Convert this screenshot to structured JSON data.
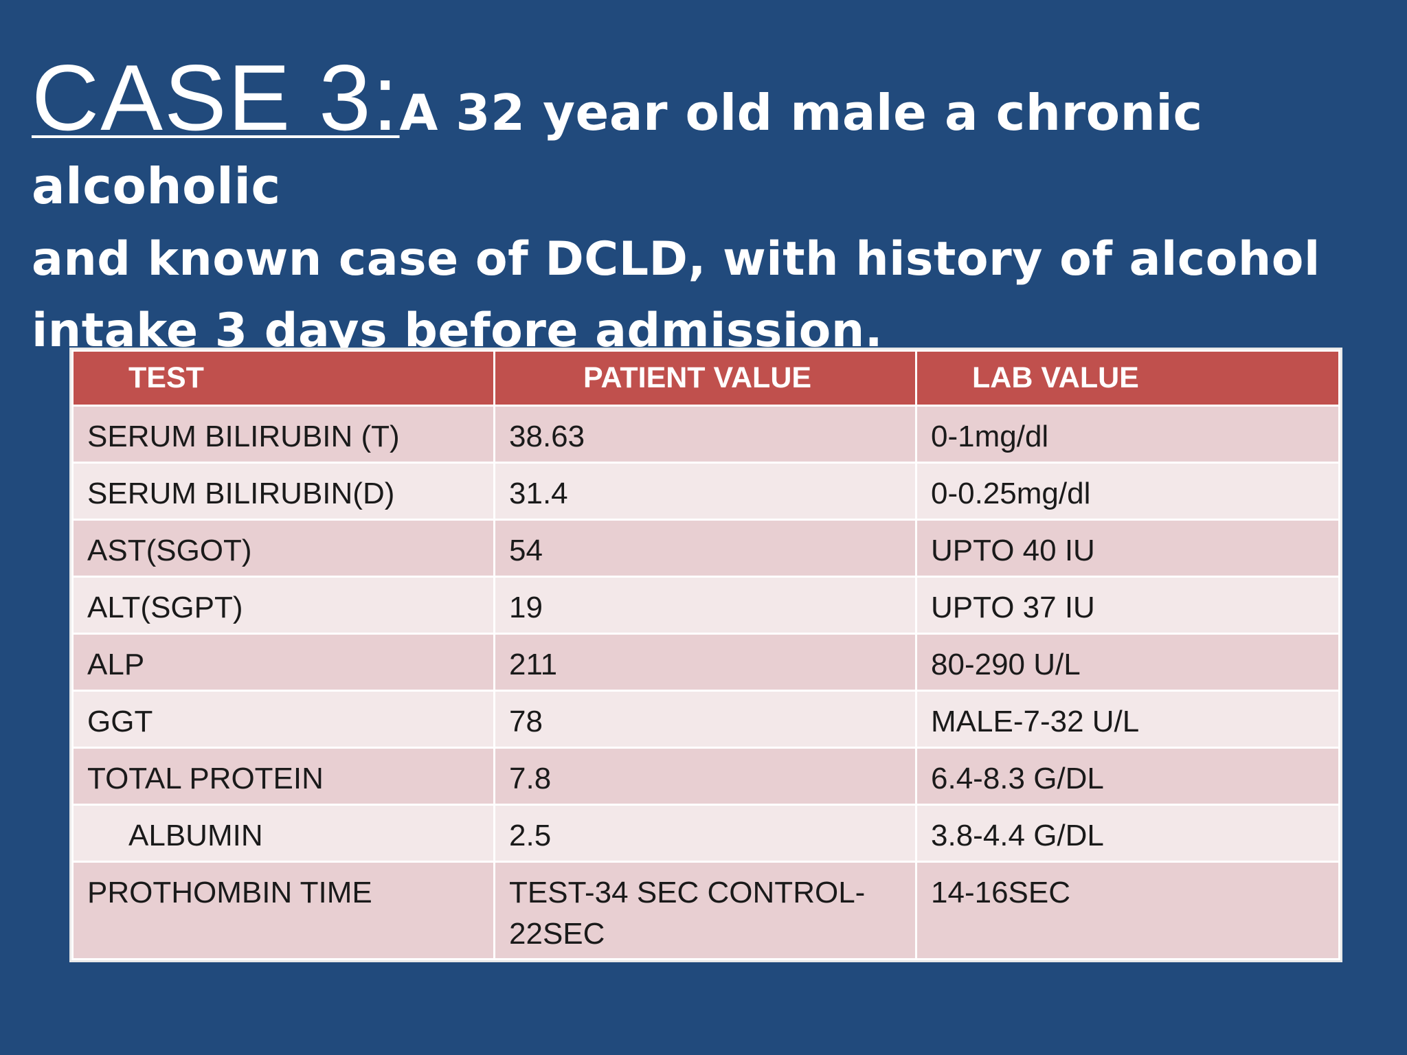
{
  "title": {
    "case_label": "CASE 3:",
    "description_line1": "A 32 year old male a chronic alcoholic",
    "description_line2": "and known case of DCLD, with history of alcohol",
    "description_line3": "intake 3 days before admission."
  },
  "table": {
    "headers": [
      "TEST",
      "PATIENT VALUE",
      "LAB VALUE"
    ],
    "rows": [
      [
        "SERUM BILIRUBIN (T)",
        "38.63",
        "0-1mg/dl"
      ],
      [
        "SERUM BILIRUBIN(D)",
        "31.4",
        "0-0.25mg/dl"
      ],
      [
        "AST(SGOT)",
        "54",
        "UPTO 40 IU"
      ],
      [
        "ALT(SGPT)",
        "19",
        "UPTO 37 IU"
      ],
      [
        "ALP",
        "211",
        "80-290 U/L"
      ],
      [
        "GGT",
        "78",
        "MALE-7-32 U/L"
      ],
      [
        "TOTAL PROTEIN",
        "7.8",
        "6.4-8.3 G/DL"
      ],
      [
        "ALBUMIN",
        "2.5",
        "3.8-4.4 G/DL"
      ],
      [
        "PROTHOMBIN TIME",
        "TEST-34 SEC CONTROL-22SEC",
        "14-16SEC"
      ]
    ]
  },
  "colors": {
    "background": "#214a7c",
    "header_fill": "#c0504d",
    "row_odd": "#e8cfd2",
    "row_even": "#f3e8e9"
  }
}
